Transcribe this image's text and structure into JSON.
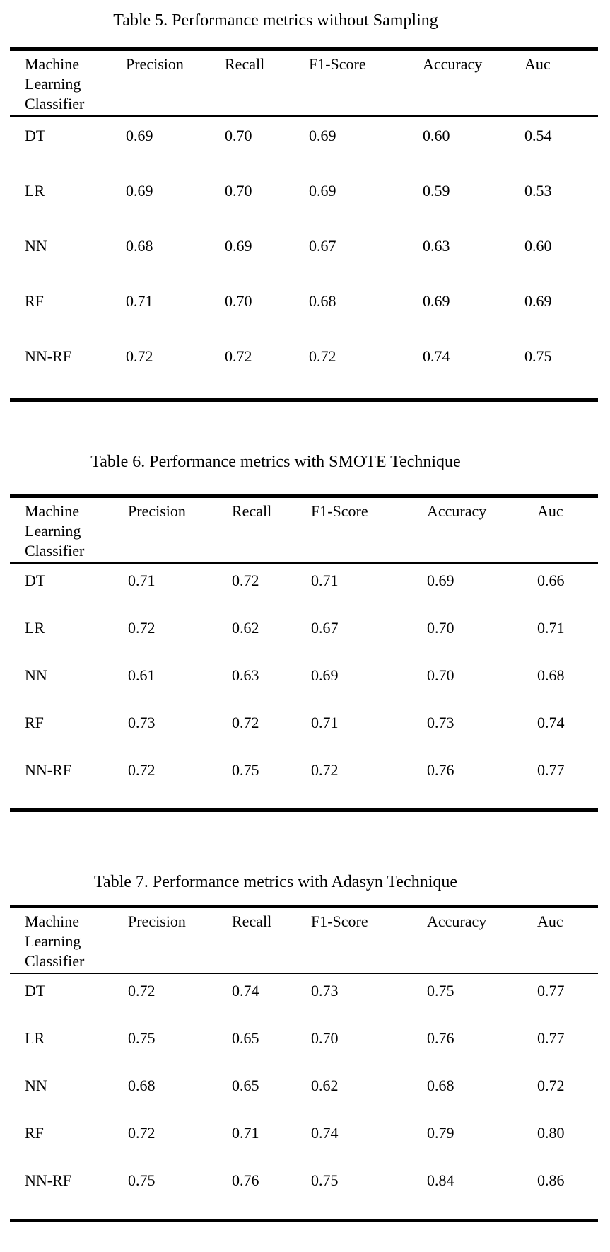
{
  "page": {
    "background_color": "#ffffff",
    "text_color": "#000000"
  },
  "tables": [
    {
      "title": "Table 5. Performance metrics without Sampling",
      "columns": [
        "Machine Learning Classifier",
        "Precision",
        "Recall",
        "F1-Score",
        "Accuracy",
        "Auc"
      ],
      "rows": [
        {
          "classifier": "DT",
          "values": [
            "0.69",
            "0.70",
            "0.69",
            "0.60",
            "0.54"
          ]
        },
        {
          "classifier": "LR",
          "values": [
            "0.69",
            "0.70",
            "0.69",
            "0.59",
            "0.53"
          ]
        },
        {
          "classifier": "NN",
          "values": [
            "0.68",
            "0.69",
            "0.67",
            "0.63",
            "0.60"
          ]
        },
        {
          "classifier": "RF",
          "values": [
            "0.71",
            "0.70",
            "0.68",
            "0.69",
            "0.69"
          ]
        },
        {
          "classifier": "NN-RF",
          "values": [
            "0.72",
            "0.72",
            "0.72",
            "0.74",
            "0.75"
          ]
        }
      ]
    },
    {
      "title": "Table 6. Performance metrics with SMOTE Technique",
      "columns": [
        "Machine Learning Classifier",
        "Precision",
        "Recall",
        "F1-Score",
        "Accuracy",
        "Auc"
      ],
      "rows": [
        {
          "classifier": "DT",
          "values": [
            "0.71",
            "0.72",
            "0.71",
            "0.69",
            "0.66"
          ]
        },
        {
          "classifier": "LR",
          "values": [
            "0.72",
            "0.62",
            "0.67",
            "0.70",
            "0.71"
          ]
        },
        {
          "classifier": "NN",
          "values": [
            "0.61",
            "0.63",
            "0.69",
            "0.70",
            "0.68"
          ]
        },
        {
          "classifier": "RF",
          "values": [
            "0.73",
            "0.72",
            "0.71",
            "0.73",
            "0.74"
          ]
        },
        {
          "classifier": "NN-RF",
          "values": [
            "0.72",
            "0.75",
            "0.72",
            "0.76",
            "0.77"
          ]
        }
      ]
    },
    {
      "title": "Table 7. Performance metrics with Adasyn Technique",
      "columns": [
        "Machine Learning Classifier",
        "Precision",
        "Recall",
        "F1-Score",
        "Accuracy",
        "Auc"
      ],
      "rows": [
        {
          "classifier": "DT",
          "values": [
            "0.72",
            "0.74",
            "0.73",
            "0.75",
            "0.77"
          ]
        },
        {
          "classifier": "LR",
          "values": [
            "0.75",
            "0.65",
            "0.70",
            "0.76",
            "0.77"
          ]
        },
        {
          "classifier": "NN",
          "values": [
            "0.68",
            "0.65",
            "0.62",
            "0.68",
            "0.72"
          ]
        },
        {
          "classifier": "RF",
          "values": [
            "0.72",
            "0.71",
            "0.74",
            "0.79",
            "0.80"
          ]
        },
        {
          "classifier": "NN-RF",
          "values": [
            "0.75",
            "0.76",
            "0.75",
            "0.84",
            "0.86"
          ]
        }
      ]
    }
  ]
}
